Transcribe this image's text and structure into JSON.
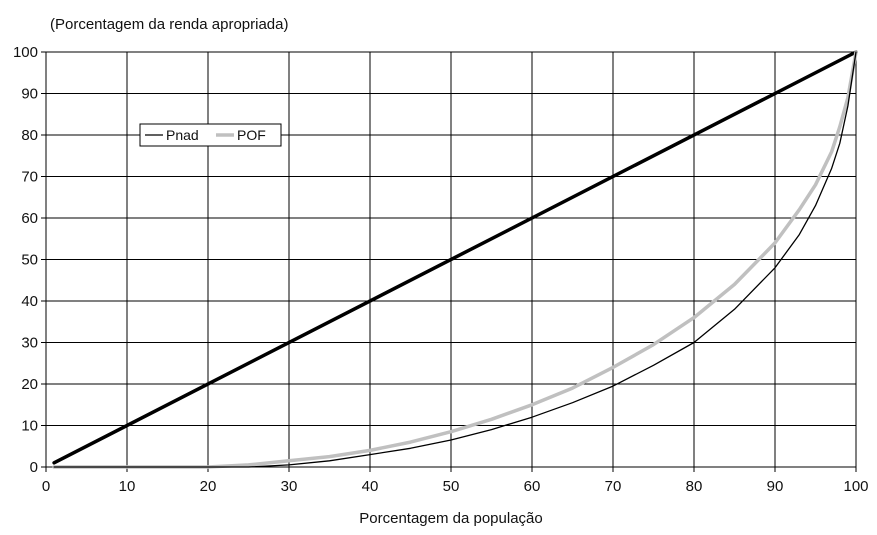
{
  "chart_data": {
    "type": "line",
    "title": "",
    "ylabel": "(Porcentagem da renda apropriada)",
    "xlabel": "Porcentagem da população",
    "xlim": [
      0,
      100
    ],
    "ylim": [
      0,
      100
    ],
    "xticks": [
      0,
      10,
      20,
      30,
      40,
      50,
      60,
      70,
      80,
      90,
      100
    ],
    "yticks": [
      0,
      10,
      20,
      30,
      40,
      50,
      60,
      70,
      80,
      90,
      100
    ],
    "grid": true,
    "legend": "upper-left inside plot",
    "reference_line": {
      "name": "",
      "color": "#000000",
      "x": [
        1,
        100
      ],
      "y": [
        1,
        100
      ]
    },
    "series": [
      {
        "name": "Pnad",
        "color": "#000000",
        "x": [
          1,
          10,
          20,
          25,
          30,
          35,
          40,
          45,
          50,
          55,
          60,
          65,
          70,
          75,
          80,
          85,
          90,
          93,
          95,
          97,
          98,
          99,
          100
        ],
        "y": [
          0,
          0,
          0,
          0,
          0.5,
          1.5,
          3,
          4.5,
          6.5,
          9,
          12,
          15.5,
          19.5,
          24.5,
          30,
          38,
          48,
          56,
          63,
          72,
          78,
          87,
          100
        ]
      },
      {
        "name": "POF",
        "color": "#c0c0c0",
        "x": [
          1,
          10,
          20,
          25,
          30,
          35,
          40,
          45,
          50,
          55,
          60,
          65,
          70,
          75,
          80,
          85,
          90,
          93,
          95,
          97,
          98,
          99,
          100
        ],
        "y": [
          0,
          0,
          0,
          0.5,
          1.5,
          2.5,
          4,
          6,
          8.5,
          11.5,
          15,
          19,
          24,
          29.5,
          36,
          44,
          54,
          62,
          68,
          76,
          82,
          89,
          100
        ]
      }
    ]
  }
}
